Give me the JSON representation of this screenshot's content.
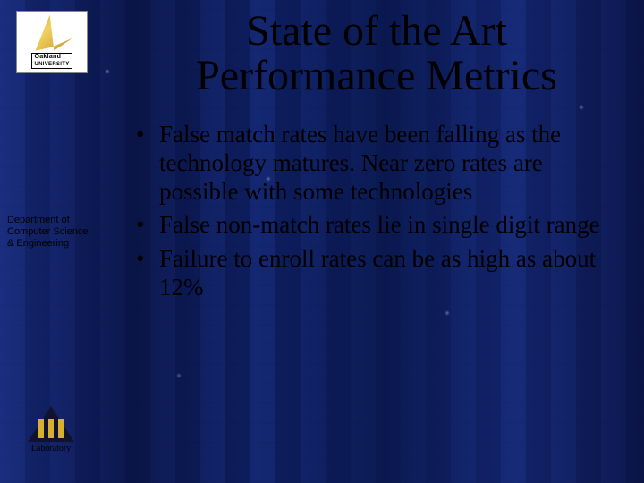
{
  "background": {
    "base_color": "#0b1d55",
    "stripe_colors": [
      "#283ca0",
      "#0a1440"
    ],
    "accent_dots": "#b4c8ff"
  },
  "sidebar": {
    "university_logo": {
      "name": "Oakland University",
      "label_top": "Oakland",
      "label_bottom": "UNIVERSITY",
      "bg_color": "#ffffff",
      "sail_color": "#d4a830"
    },
    "department_text": "Department of\nComputer Science\n& Engineering",
    "lab_logo": {
      "triangle_color": "#10132e",
      "pillar_color": "#d8b030",
      "label": "Laboratory"
    }
  },
  "slide": {
    "title": "State of the Art\nPerformance Metrics",
    "title_fontsize": 48,
    "title_color": "#000000",
    "bullets": [
      "False match rates have been falling as the technology matures. Near zero rates are possible with some technologies",
      "False non-match rates lie in single digit range",
      "Failure to enroll rates can be as high as about 12%"
    ],
    "bullet_fontsize": 27,
    "bullet_color": "#000000"
  }
}
